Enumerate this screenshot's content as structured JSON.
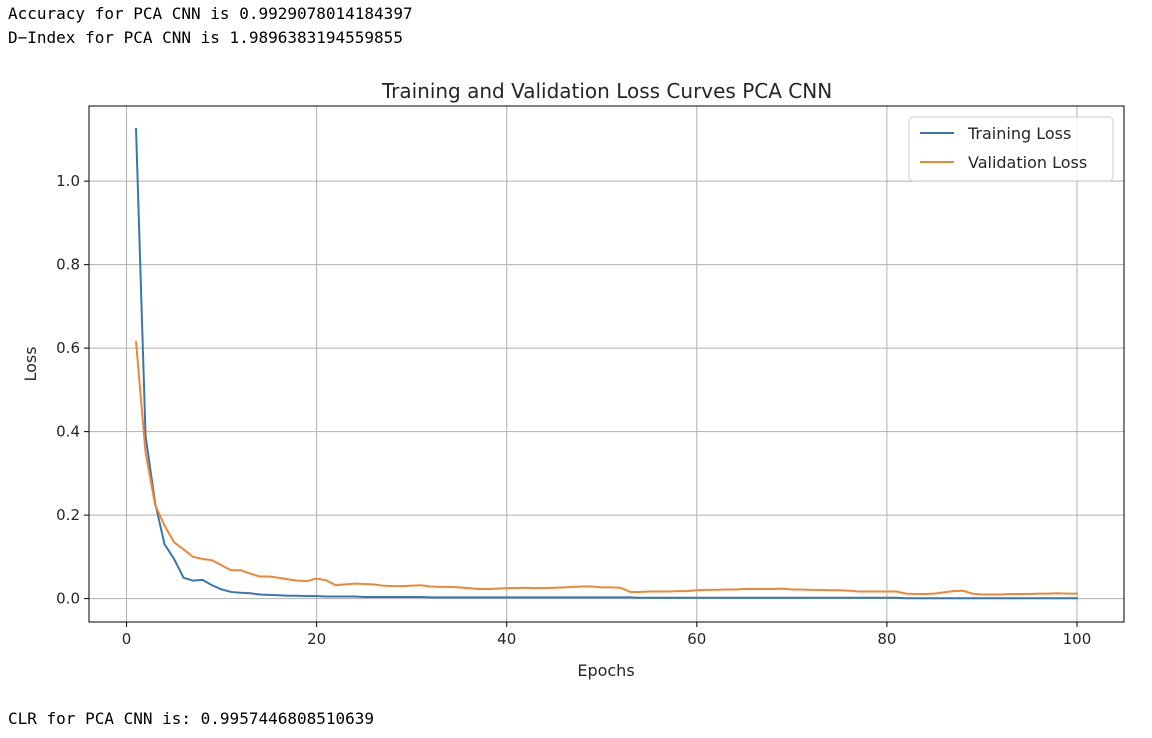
{
  "output": {
    "accuracy_line": "Accuracy for PCA CNN is 0.9929078014184397",
    "dindex_line": "D−Index for PCA CNN is 1.9896383194559855",
    "clr_line": "CLR for PCA CNN is: 0.9957446808510639"
  },
  "colors": {
    "training": "#3b75af",
    "validation": "#ef8636",
    "grid": "#b0b0b0"
  },
  "chart_data": {
    "type": "line",
    "title": "Training and Validation Loss Curves PCA CNN",
    "xlabel": "Epochs",
    "ylabel": "Loss",
    "xlim": [
      -3.95,
      104.95
    ],
    "ylim": [
      -0.056,
      1.18
    ],
    "xticks": [
      0,
      20,
      40,
      60,
      80,
      100
    ],
    "xtick_labels": [
      "0",
      "20",
      "40",
      "60",
      "80",
      "100"
    ],
    "yticks": [
      0.0,
      0.2,
      0.4,
      0.6,
      0.8,
      1.0
    ],
    "ytick_labels": [
      "0.0",
      "0.2",
      "0.4",
      "0.6",
      "0.8",
      "1.0"
    ],
    "grid": true,
    "legend_position": "top-right",
    "x": [
      1,
      2,
      3,
      4,
      5,
      6,
      7,
      8,
      9,
      10,
      11,
      12,
      13,
      14,
      15,
      16,
      17,
      18,
      19,
      20,
      21,
      22,
      23,
      24,
      25,
      26,
      27,
      28,
      29,
      30,
      31,
      32,
      33,
      34,
      35,
      36,
      37,
      38,
      39,
      40,
      41,
      42,
      43,
      44,
      45,
      46,
      47,
      48,
      49,
      50,
      51,
      52,
      53,
      54,
      55,
      56,
      57,
      58,
      59,
      60,
      61,
      62,
      63,
      64,
      65,
      66,
      67,
      68,
      69,
      70,
      71,
      72,
      73,
      74,
      75,
      76,
      77,
      78,
      79,
      80,
      81,
      82,
      83,
      84,
      85,
      86,
      87,
      88,
      89,
      90,
      91,
      92,
      93,
      94,
      95,
      96,
      97,
      98,
      99,
      100
    ],
    "series": [
      {
        "name": "Training Loss",
        "values": [
          1.125,
          0.39,
          0.23,
          0.13,
          0.095,
          0.05,
          0.043,
          0.045,
          0.032,
          0.022,
          0.016,
          0.014,
          0.013,
          0.01,
          0.009,
          0.008,
          0.007,
          0.007,
          0.006,
          0.006,
          0.005,
          0.005,
          0.005,
          0.005,
          0.004,
          0.004,
          0.004,
          0.004,
          0.004,
          0.004,
          0.004,
          0.003,
          0.003,
          0.003,
          0.003,
          0.003,
          0.003,
          0.003,
          0.003,
          0.003,
          0.003,
          0.003,
          0.003,
          0.003,
          0.003,
          0.003,
          0.003,
          0.003,
          0.003,
          0.003,
          0.003,
          0.003,
          0.003,
          0.002,
          0.002,
          0.002,
          0.002,
          0.002,
          0.002,
          0.002,
          0.002,
          0.002,
          0.002,
          0.002,
          0.002,
          0.002,
          0.002,
          0.002,
          0.002,
          0.002,
          0.002,
          0.002,
          0.002,
          0.002,
          0.002,
          0.002,
          0.002,
          0.002,
          0.002,
          0.002,
          0.002,
          0.001,
          0.001,
          0.001,
          0.001,
          0.001,
          0.001,
          0.001,
          0.001,
          0.001,
          0.001,
          0.001,
          0.001,
          0.001,
          0.001,
          0.001,
          0.001,
          0.001,
          0.001,
          0.001
        ]
      },
      {
        "name": "Validation Loss",
        "values": [
          0.615,
          0.35,
          0.225,
          0.175,
          0.135,
          0.118,
          0.1,
          0.095,
          0.092,
          0.08,
          0.068,
          0.068,
          0.06,
          0.053,
          0.053,
          0.05,
          0.046,
          0.043,
          0.042,
          0.048,
          0.044,
          0.032,
          0.034,
          0.036,
          0.035,
          0.034,
          0.031,
          0.03,
          0.03,
          0.031,
          0.032,
          0.029,
          0.028,
          0.028,
          0.027,
          0.025,
          0.023,
          0.023,
          0.024,
          0.025,
          0.025,
          0.026,
          0.025,
          0.025,
          0.026,
          0.027,
          0.028,
          0.029,
          0.029,
          0.027,
          0.027,
          0.026,
          0.016,
          0.016,
          0.017,
          0.017,
          0.017,
          0.018,
          0.018,
          0.02,
          0.021,
          0.021,
          0.022,
          0.022,
          0.023,
          0.023,
          0.023,
          0.023,
          0.024,
          0.022,
          0.022,
          0.021,
          0.021,
          0.02,
          0.02,
          0.019,
          0.017,
          0.017,
          0.017,
          0.017,
          0.017,
          0.012,
          0.011,
          0.011,
          0.012,
          0.015,
          0.018,
          0.019,
          0.012,
          0.01,
          0.01,
          0.01,
          0.011,
          0.011,
          0.011,
          0.012,
          0.012,
          0.013,
          0.012,
          0.012
        ]
      }
    ]
  }
}
